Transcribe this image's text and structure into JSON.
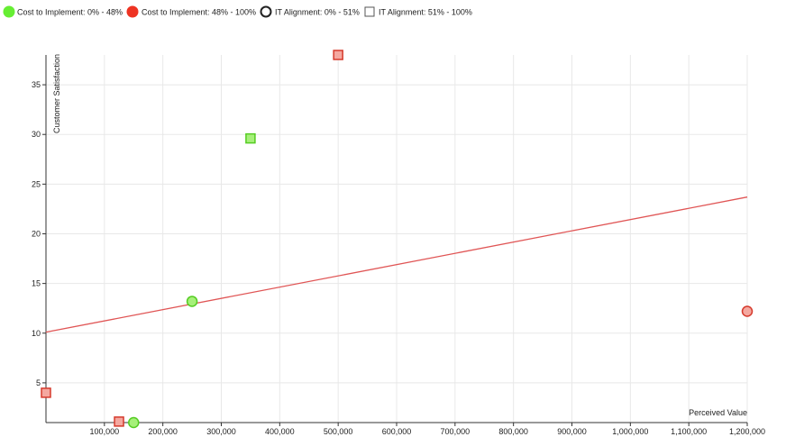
{
  "chart_data": {
    "type": "scatter",
    "title": "",
    "xlabel": "Perceived Value",
    "ylabel": "Customer Satisfaction",
    "xlim": [
      0,
      1200000
    ],
    "ylim": [
      1,
      38
    ],
    "grid": true,
    "legend_position": "top-left",
    "x_ticks": [
      100000,
      200000,
      300000,
      400000,
      500000,
      600000,
      700000,
      800000,
      900000,
      1000000,
      1100000,
      1200000
    ],
    "x_tick_labels": [
      "100,000",
      "200,000",
      "300,000",
      "400,000",
      "500,000",
      "600,000",
      "700,000",
      "800,000",
      "900,000",
      "1,000,000",
      "1,100,000",
      "1,200,000"
    ],
    "y_ticks": [
      5,
      10,
      15,
      20,
      25,
      30,
      35
    ],
    "y_tick_labels": [
      "5",
      "10",
      "15",
      "20",
      "25",
      "30",
      "35"
    ],
    "legend": [
      {
        "label": "Cost to Implement: 0% - 48%",
        "symbol": "filled-circle",
        "color": "#66ee33"
      },
      {
        "label": "Cost to Implement: 48% - 100%",
        "symbol": "filled-circle",
        "color": "#ee3322"
      },
      {
        "label": "IT Alignment: 0% - 51%",
        "symbol": "hollow-circle",
        "color": "#222222"
      },
      {
        "label": "IT Alignment: 51% - 100%",
        "symbol": "hollow-square",
        "color": "#555555"
      }
    ],
    "points": [
      {
        "x": 350000,
        "y": 29.6,
        "cost_group": "low",
        "it_group": "high"
      },
      {
        "x": 250000,
        "y": 13.2,
        "cost_group": "low",
        "it_group": "low"
      },
      {
        "x": 150000,
        "y": 1.0,
        "cost_group": "low",
        "it_group": "low"
      },
      {
        "x": 500000,
        "y": 38.0,
        "cost_group": "high",
        "it_group": "high"
      },
      {
        "x": 0,
        "y": 4.0,
        "cost_group": "high",
        "it_group": "high"
      },
      {
        "x": 125000,
        "y": 1.1,
        "cost_group": "high",
        "it_group": "high"
      },
      {
        "x": 1200000,
        "y": 12.2,
        "cost_group": "high",
        "it_group": "low"
      }
    ],
    "trend_line": {
      "x": [
        0,
        1200000
      ],
      "y": [
        10.1,
        23.7
      ],
      "color": "#e05555"
    },
    "colors": {
      "low_fill": "#a6f07a",
      "low_stroke": "#55cc22",
      "high_fill": "#f4a8a0",
      "high_stroke": "#d63a2c",
      "grid": "#e8e8e8",
      "axis": "#333333"
    }
  }
}
